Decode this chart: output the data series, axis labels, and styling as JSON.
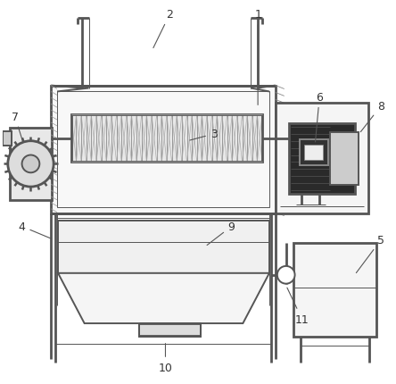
{
  "bg_color": "#ffffff",
  "lc": "#555555",
  "lw": 1.4,
  "lw_thin": 0.7,
  "lw_thick": 2.0
}
